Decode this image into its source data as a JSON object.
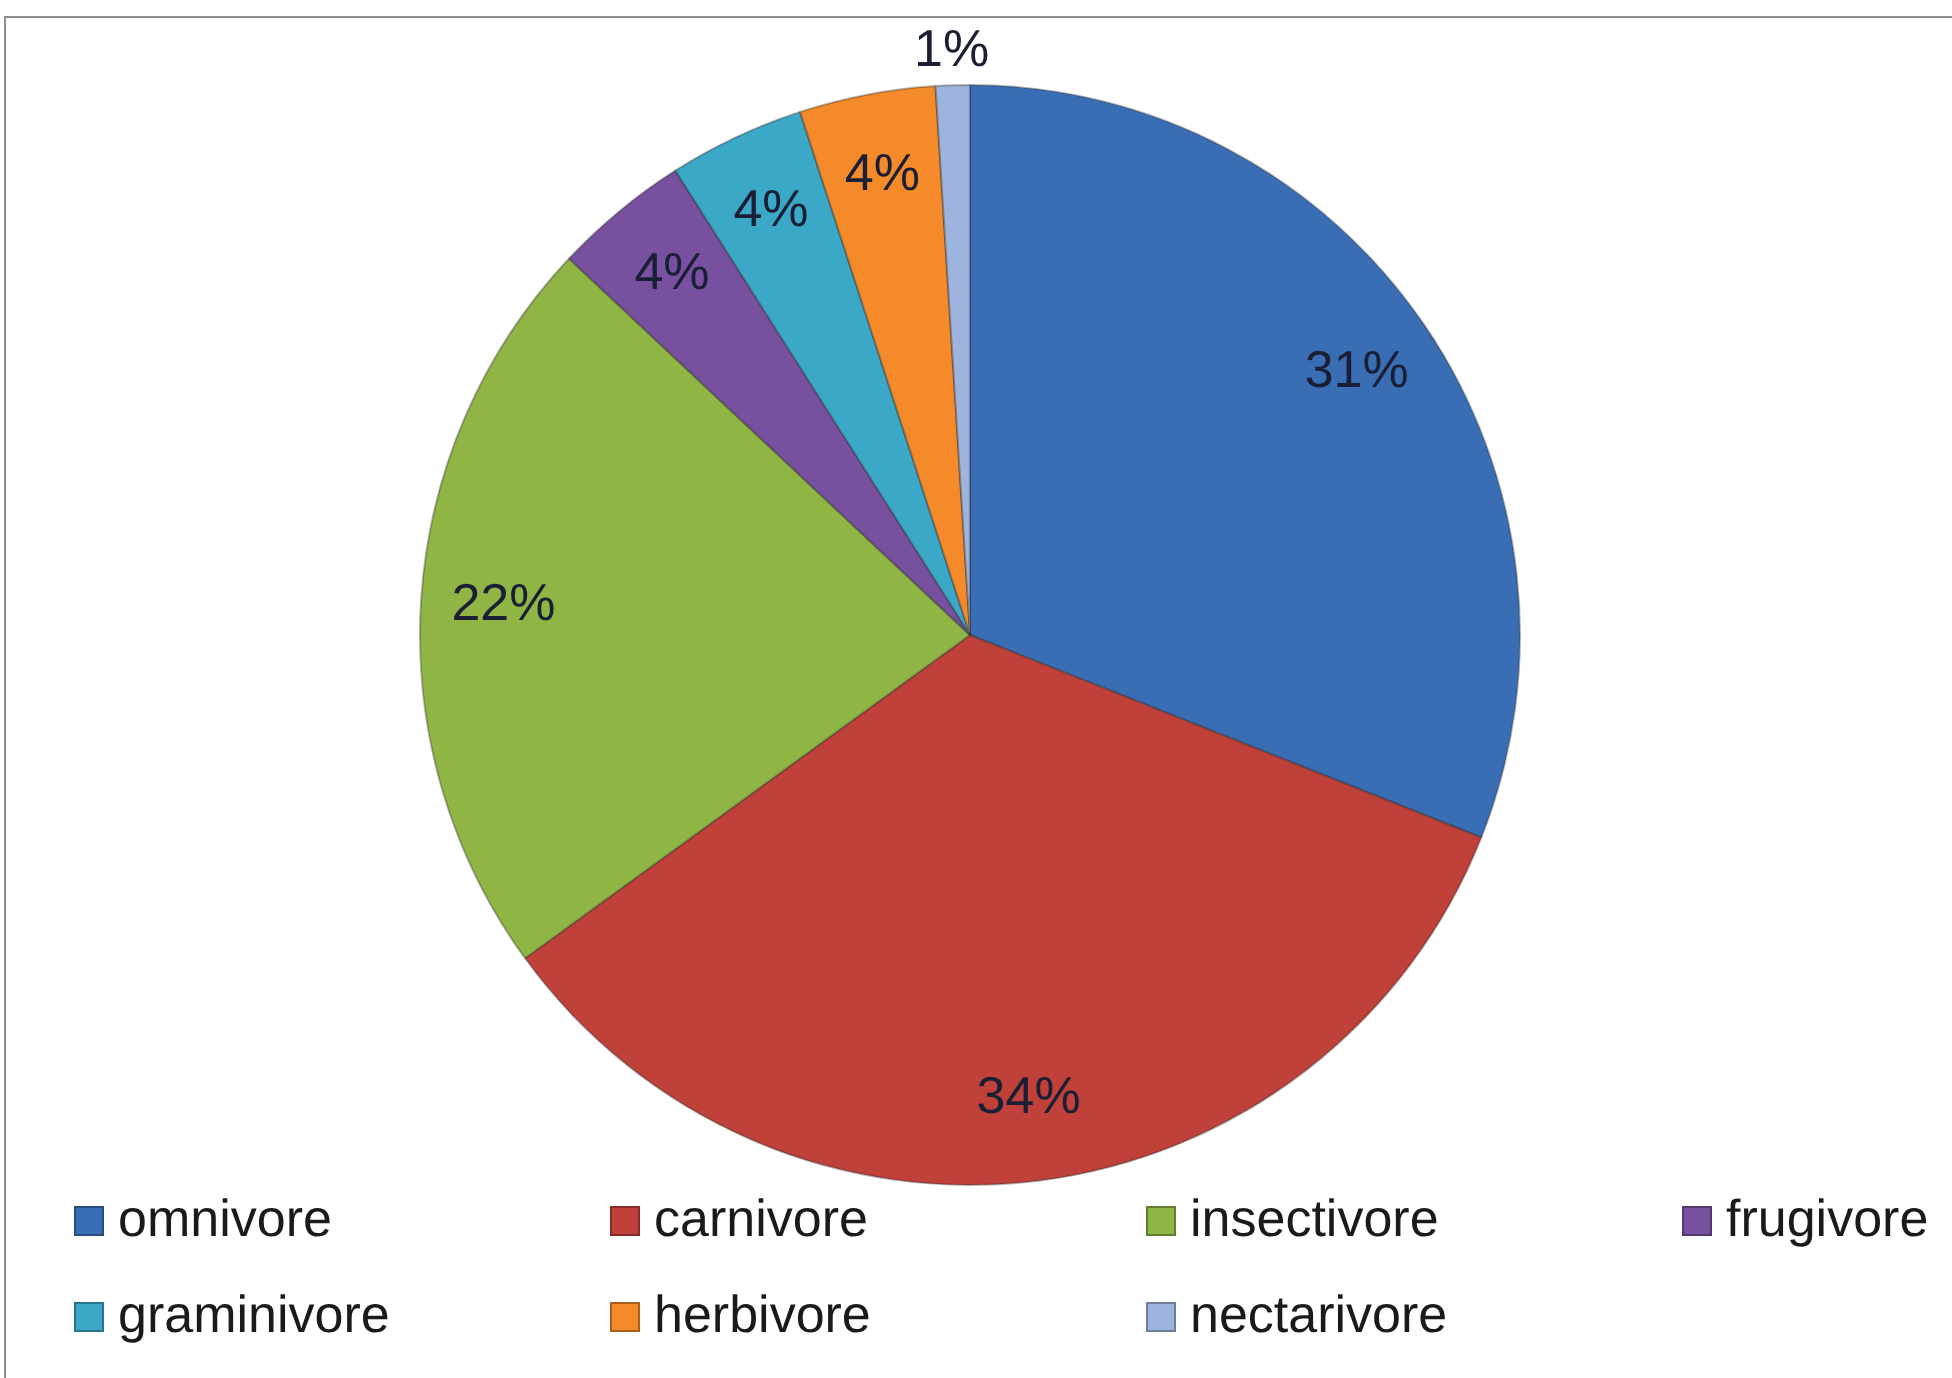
{
  "chart_data": {
    "type": "pie",
    "categories": [
      "omnivore",
      "carnivore",
      "insectivore",
      "frugivore",
      "graminivore",
      "herbivore",
      "nectarivore"
    ],
    "values": [
      31,
      34,
      22,
      4,
      4,
      4,
      1
    ],
    "colors": [
      "#3a6eb4",
      "#c0403a",
      "#8fb544",
      "#7750a0",
      "#3ba8c8",
      "#f48a2a",
      "#9db5de"
    ],
    "value_labels": [
      "31%",
      "34%",
      "22%",
      "4%",
      "4%",
      "4%",
      "1%"
    ],
    "legend": "bottom"
  }
}
